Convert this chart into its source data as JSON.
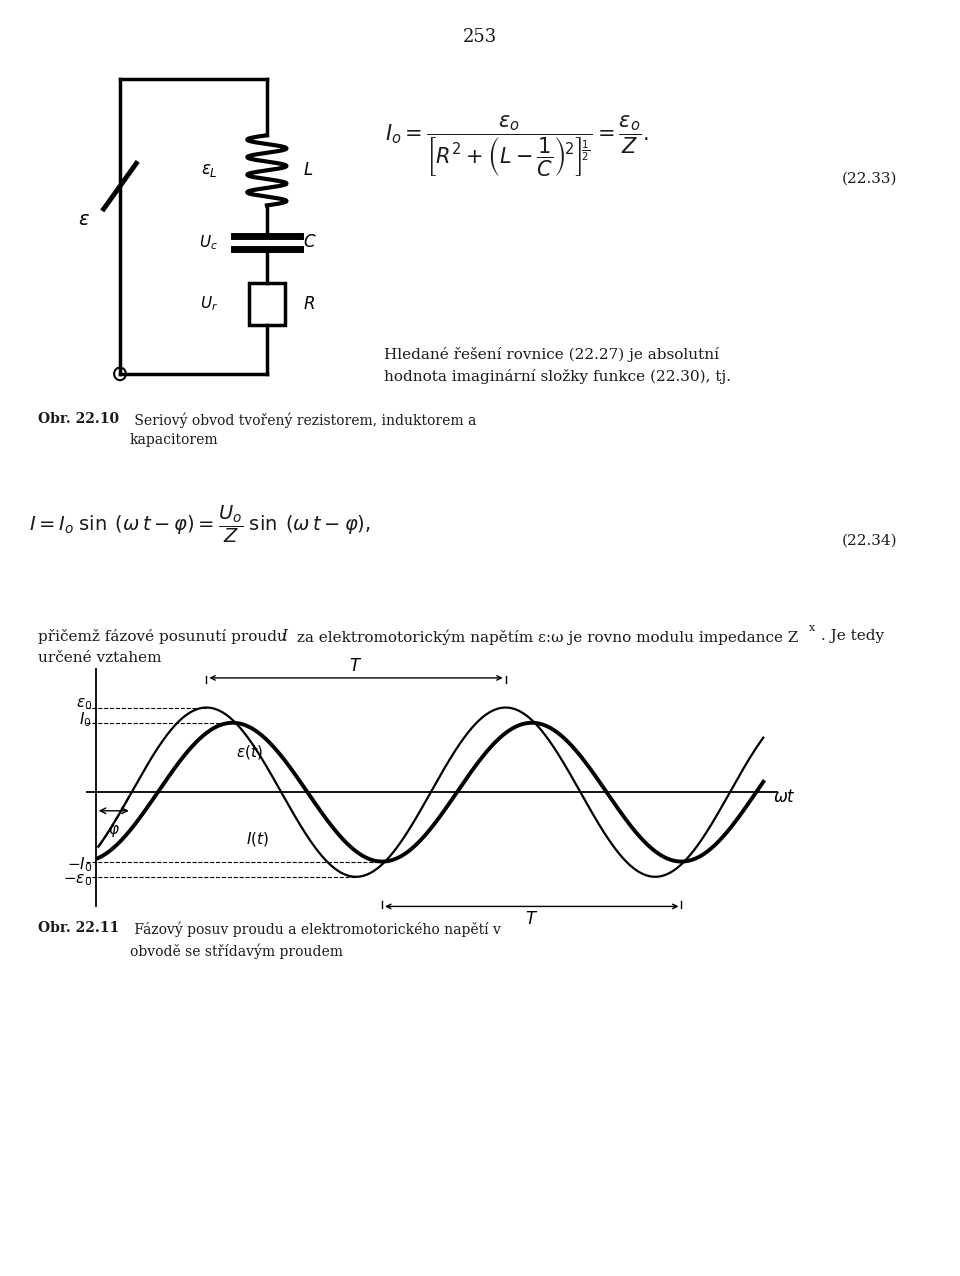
{
  "page_number": "253",
  "bg_color": "#ffffff",
  "text_color": "#1a1a1a",
  "eq_number1": "(22.33)",
  "eq_number2": "(22.34)",
  "text1_line1": "Hledané řešení rovnice (22.27) je absolutní",
  "text1_line2": "hodnota imaginární složky funkce (22.30), tj.",
  "caption1_bold": "Obr. 22.10",
  "caption1_rest": " Seriový obvod tvořený rezistorem, induktorem a\nkapacitorem",
  "caption2_bold": "Obr. 22.11",
  "caption2_rest": " Fázový posuv proudu a elektromotorického napětí v\nobvodě se střídavým proudem",
  "para_line1": "přičemž fázové posunutí proudu ",
  "para_italic": "I",
  "para_line1b": " za elektromotorickým napětím ε:ω je rovno modulu impedance ",
  "para_Zx": "Z",
  "para_end1": ". Je tedy",
  "para_line2": "určené vztahem",
  "wave_phi": 0.55,
  "eps_amp": 1.0,
  "I_amp": 0.82
}
